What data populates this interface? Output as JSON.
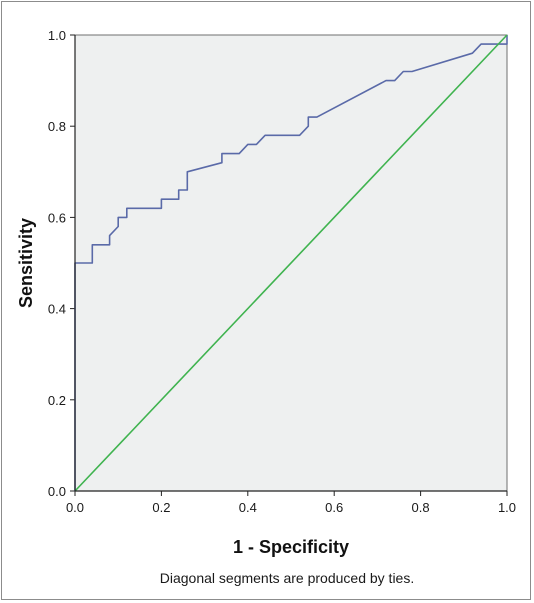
{
  "chart_data": {
    "type": "line",
    "title": "",
    "xlabel": "1 - Specificity",
    "ylabel": "Sensitivity",
    "footnote": "Diagonal segments are produced by ties.",
    "xlim": [
      0,
      1
    ],
    "ylim": [
      0,
      1
    ],
    "x_ticks": [
      "0.0",
      "0.2",
      "0.4",
      "0.6",
      "0.8",
      "1.0"
    ],
    "y_ticks": [
      "0.0",
      "0.2",
      "0.4",
      "0.6",
      "0.8",
      "1.0"
    ],
    "grid": false,
    "plot_background": "#eef0f0",
    "series": [
      {
        "color": "#5a6aa8",
        "points": [
          [
            0,
            0
          ],
          [
            0,
            0.5
          ],
          [
            0.04,
            0.5
          ],
          [
            0.04,
            0.54
          ],
          [
            0.08,
            0.54
          ],
          [
            0.08,
            0.56
          ],
          [
            0.1,
            0.58
          ],
          [
            0.1,
            0.6
          ],
          [
            0.12,
            0.6
          ],
          [
            0.12,
            0.62
          ],
          [
            0.2,
            0.62
          ],
          [
            0.2,
            0.64
          ],
          [
            0.24,
            0.64
          ],
          [
            0.24,
            0.66
          ],
          [
            0.26,
            0.66
          ],
          [
            0.26,
            0.7
          ],
          [
            0.34,
            0.72
          ],
          [
            0.34,
            0.74
          ],
          [
            0.38,
            0.74
          ],
          [
            0.4,
            0.76
          ],
          [
            0.42,
            0.76
          ],
          [
            0.44,
            0.78
          ],
          [
            0.52,
            0.78
          ],
          [
            0.54,
            0.8
          ],
          [
            0.54,
            0.82
          ],
          [
            0.56,
            0.82
          ],
          [
            0.72,
            0.9
          ],
          [
            0.74,
            0.9
          ],
          [
            0.76,
            0.92
          ],
          [
            0.78,
            0.92
          ],
          [
            0.92,
            0.96
          ],
          [
            0.94,
            0.98
          ],
          [
            1.0,
            0.98
          ],
          [
            1.0,
            1.0
          ]
        ]
      },
      {
        "color": "#3fb34f",
        "points": [
          [
            0,
            0
          ],
          [
            1,
            1
          ]
        ]
      }
    ]
  }
}
